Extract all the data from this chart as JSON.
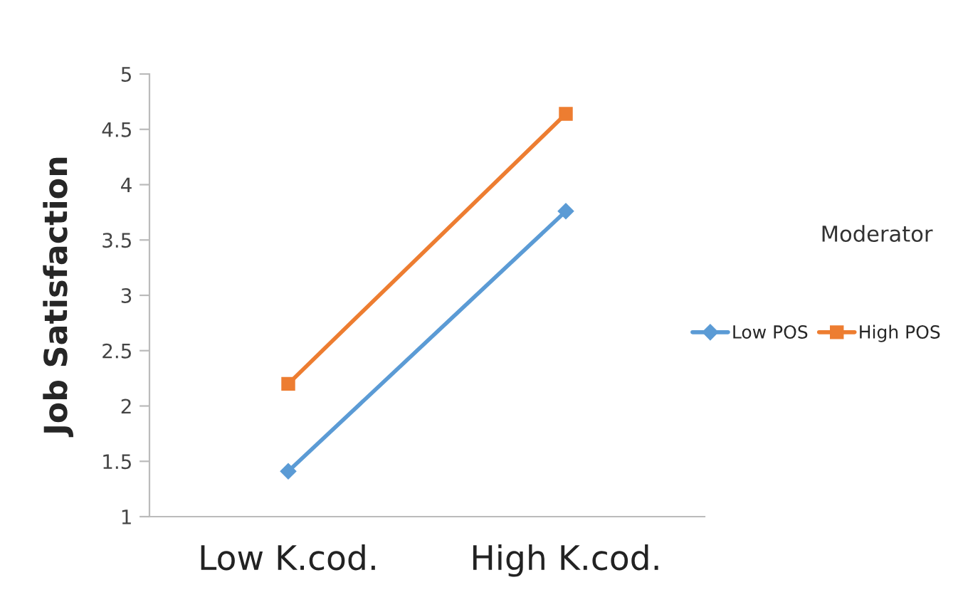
{
  "chart_data": {
    "type": "line",
    "ylabel": "Job Satisfaction",
    "legend_title": "Moderator",
    "categories": [
      "Low K.cod.",
      "High K.cod."
    ],
    "series": [
      {
        "name": "Low POS",
        "color": "#5b9bd5",
        "values": [
          1.41,
          3.76
        ],
        "marker": "diamond"
      },
      {
        "name": "High POS",
        "color": "#ed7d31",
        "values": [
          2.2,
          4.64
        ],
        "marker": "square"
      }
    ],
    "ylim": [
      1,
      5
    ],
    "yticks": [
      1,
      1.5,
      2,
      2.5,
      3,
      3.5,
      4,
      4.5,
      5
    ],
    "grid": false,
    "legend": "right",
    "line_style": "solid"
  }
}
